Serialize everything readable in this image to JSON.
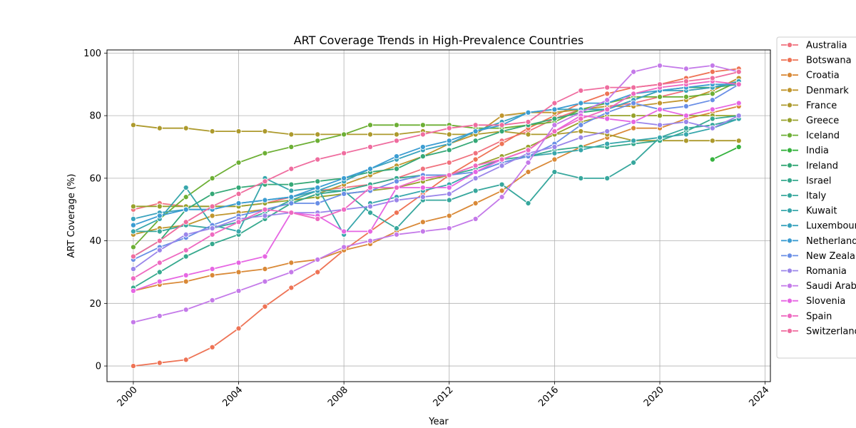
{
  "chart_data": {
    "type": "line",
    "title": "ART Coverage Trends in High-Prevalence Countries",
    "xlabel": "Year",
    "ylabel": "ART Coverage (%)",
    "xlim": [
      1999,
      2024.2
    ],
    "ylim": [
      -5,
      101
    ],
    "xticks": [
      2000,
      2004,
      2008,
      2012,
      2016,
      2020,
      2024
    ],
    "yticks": [
      0,
      20,
      40,
      60,
      80,
      100
    ],
    "grid": true,
    "legend_position": "right",
    "x": [
      2000,
      2001,
      2002,
      2003,
      2004,
      2005,
      2006,
      2007,
      2008,
      2009,
      2010,
      2011,
      2012,
      2013,
      2014,
      2015,
      2016,
      2017,
      2018,
      2019,
      2020,
      2021,
      2022,
      2023
    ],
    "series": [
      {
        "name": "Australia",
        "color": "#f0727e",
        "values": [
          50,
          52,
          51,
          51,
          51,
          52,
          54,
          56,
          57,
          58,
          60,
          63,
          65,
          68,
          72,
          75,
          79,
          82,
          83,
          84,
          86,
          88,
          89,
          91
        ]
      },
      {
        "name": "Botswana",
        "color": "#ee7355",
        "values": [
          0,
          1,
          2,
          6,
          12,
          19,
          25,
          30,
          37,
          43,
          49,
          55,
          61,
          66,
          71,
          76,
          80,
          84,
          87,
          89,
          90,
          92,
          94,
          95
        ]
      },
      {
        "name": "Croatia",
        "color": "#d98937",
        "values": [
          24,
          26,
          27,
          29,
          30,
          31,
          33,
          34,
          37,
          39,
          43,
          46,
          48,
          52,
          56,
          62,
          66,
          70,
          73,
          76,
          76,
          79,
          81,
          83
        ]
      },
      {
        "name": "Denmark",
        "color": "#c0962e",
        "values": [
          42,
          44,
          45,
          48,
          49,
          50,
          52,
          55,
          58,
          61,
          64,
          67,
          71,
          74,
          80,
          81,
          81,
          82,
          83,
          83,
          84,
          85,
          88,
          92
        ]
      },
      {
        "name": "France",
        "color": "#ad9a2d",
        "values": [
          77,
          76,
          76,
          75,
          75,
          75,
          74,
          74,
          74,
          74,
          74,
          75,
          74,
          74,
          75,
          74,
          74,
          75,
          74,
          72,
          72,
          72,
          72,
          72
        ]
      },
      {
        "name": "Greece",
        "color": "#97a22c",
        "values": [
          51,
          51,
          51,
          51,
          51,
          52,
          53,
          54,
          55,
          56,
          57,
          59,
          61,
          64,
          67,
          70,
          74,
          78,
          80,
          80,
          80,
          80,
          80,
          80
        ]
      },
      {
        "name": "Iceland",
        "color": "#6daf35",
        "values": [
          38,
          47,
          54,
          60,
          65,
          68,
          70,
          72,
          74,
          77,
          77,
          77,
          77,
          76,
          76,
          77,
          78,
          82,
          84,
          86,
          86,
          86,
          87,
          91
        ]
      },
      {
        "name": "India",
        "color": "#37b340",
        "values": [
          null,
          null,
          null,
          null,
          null,
          null,
          null,
          null,
          null,
          null,
          null,
          null,
          null,
          null,
          null,
          null,
          null,
          null,
          null,
          null,
          null,
          null,
          66,
          70
        ]
      },
      {
        "name": "Ireland",
        "color": "#35a877",
        "values": [
          35,
          40,
          50,
          55,
          57,
          58,
          58,
          59,
          60,
          62,
          63,
          67,
          69,
          72,
          75,
          77,
          79,
          81,
          82,
          85,
          88,
          89,
          89,
          90
        ]
      },
      {
        "name": "Israel",
        "color": "#36a98e",
        "values": [
          25,
          30,
          35,
          39,
          42,
          47,
          52,
          55,
          56,
          58,
          60,
          61,
          61,
          63,
          66,
          67,
          69,
          70,
          70,
          71,
          72,
          75,
          79,
          80
        ]
      },
      {
        "name": "Italy",
        "color": "#37a79d",
        "values": [
          43,
          43,
          45,
          44,
          46,
          49,
          53,
          56,
          56,
          49,
          44,
          53,
          53,
          56,
          58,
          52,
          62,
          60,
          60,
          65,
          73,
          76,
          77,
          79
        ]
      },
      {
        "name": "Kuwait",
        "color": "#38a7ac",
        "values": [
          43,
          47,
          57,
          45,
          43,
          60,
          56,
          57,
          42,
          52,
          54,
          56,
          58,
          62,
          65,
          67,
          68,
          69,
          71,
          72,
          73,
          74,
          76,
          79
        ]
      },
      {
        "name": "Luxembourg",
        "color": "#3aa3be",
        "values": [
          47,
          49,
          50,
          50,
          52,
          53,
          54,
          56,
          59,
          63,
          66,
          69,
          71,
          75,
          78,
          81,
          82,
          82,
          82,
          85,
          88,
          88,
          89,
          91
        ]
      },
      {
        "name": "Netherlands",
        "color": "#3c9dd2",
        "values": [
          45,
          48,
          50,
          50,
          52,
          53,
          54,
          57,
          60,
          63,
          67,
          70,
          72,
          75,
          77,
          81,
          82,
          84,
          84,
          87,
          88,
          89,
          90,
          90
        ]
      },
      {
        "name": "New Zealand",
        "color": "#6a8fe6",
        "values": [
          34,
          38,
          41,
          45,
          48,
          50,
          52,
          52,
          55,
          56,
          59,
          61,
          61,
          62,
          65,
          67,
          71,
          77,
          81,
          84,
          82,
          83,
          85,
          90
        ]
      },
      {
        "name": "Romania",
        "color": "#9b86ea",
        "values": [
          31,
          37,
          42,
          44,
          47,
          48,
          49,
          49,
          50,
          51,
          53,
          54,
          55,
          60,
          64,
          68,
          70,
          73,
          75,
          78,
          77,
          78,
          76,
          80
        ]
      },
      {
        "name": "Saudi Arabia",
        "color": "#c47ae9",
        "values": [
          14,
          16,
          18,
          21,
          24,
          27,
          30,
          34,
          38,
          40,
          42,
          43,
          44,
          47,
          54,
          65,
          77,
          81,
          85,
          94,
          96,
          95,
          96,
          94
        ]
      },
      {
        "name": "Slovenia",
        "color": "#e666e3",
        "values": [
          24,
          27,
          29,
          31,
          33,
          35,
          49,
          48,
          43,
          43,
          57,
          57,
          57,
          62,
          66,
          69,
          75,
          80,
          79,
          78,
          82,
          80,
          82,
          84
        ]
      },
      {
        "name": "Spain",
        "color": "#ee6ac1",
        "values": [
          28,
          33,
          37,
          42,
          46,
          50,
          49,
          47,
          50,
          57,
          57,
          60,
          61,
          64,
          66,
          69,
          75,
          79,
          82,
          87,
          89,
          90,
          91,
          90
        ]
      },
      {
        "name": "Switzerland",
        "color": "#ef6d9f",
        "values": [
          35,
          40,
          46,
          51,
          55,
          59,
          63,
          66,
          68,
          70,
          72,
          74,
          76,
          77,
          77,
          78,
          84,
          88,
          89,
          89,
          90,
          91,
          92,
          94
        ]
      }
    ]
  }
}
